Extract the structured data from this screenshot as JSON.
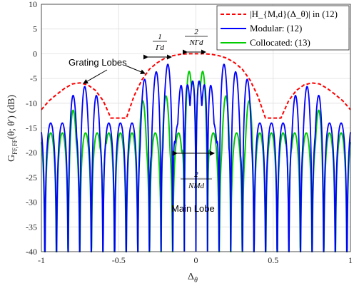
{
  "chart_data": {
    "type": "line",
    "title": "",
    "xlabel": "Δ",
    "xlabel_sub": "θ",
    "ylabel": "G",
    "ylabel_sub": "FF,FF",
    "ylabel_arg": "(θ; θ′) (dB)",
    "xlim": [
      -1,
      1
    ],
    "ylim": [
      -40,
      10
    ],
    "xticks": [
      -1,
      -0.5,
      0,
      0.5,
      1
    ],
    "xtick_labels": [
      "-1",
      "-0.5",
      "0",
      "0.5",
      "1"
    ],
    "yticks": [
      10,
      5,
      0,
      -5,
      -10,
      -15,
      -20,
      -25,
      -30,
      -35,
      -40
    ],
    "ytick_labels": [
      "10",
      "5",
      "0",
      "-5",
      "-10",
      "-15",
      "-20",
      "-25",
      "-30",
      "-35",
      "-40"
    ],
    "grid": true,
    "legend_position": "top-right",
    "legend": [
      "|H_{M,d}(Δ_θ)| in (12)",
      "Modular: (12)",
      "Collocated: (13)"
    ],
    "series": [
      {
        "name": "|H_{M,d}(Δ_θ)| in (12)",
        "color": "#ff0000",
        "style": "dashed",
        "x": [
          -1,
          -0.95,
          -0.9,
          -0.85,
          -0.8,
          -0.75,
          -0.7,
          -0.65,
          -0.6,
          -0.55,
          -0.45,
          -0.4,
          -0.35,
          -0.3,
          -0.25,
          -0.2,
          -0.15,
          -0.1,
          -0.05,
          0,
          0.05,
          0.1,
          0.15,
          0.2,
          0.25,
          0.3,
          0.35,
          0.4,
          0.45,
          0.55,
          0.6,
          0.65,
          0.7,
          0.75,
          0.8,
          0.85,
          0.9,
          0.95,
          1
        ],
        "y": [
          -11.3,
          -9.5,
          -8.2,
          -7,
          -6.1,
          -5.9,
          -6.3,
          -7.4,
          -9.5,
          -13,
          -13,
          -8.5,
          -5.3,
          -3.1,
          -1.8,
          -0.9,
          -0.4,
          -0.1,
          0,
          0,
          0,
          -0.1,
          -0.4,
          -0.9,
          -1.8,
          -3.1,
          -5.3,
          -8.5,
          -13,
          -13,
          -9.5,
          -7.4,
          -6.3,
          -5.9,
          -6.1,
          -7,
          -8.2,
          -9.5,
          -11.3
        ]
      },
      {
        "name": "Modular: (12)",
        "color": "#0000ff",
        "style": "solid",
        "peaks": [
          {
            "x": -0.8,
            "y": -8.0
          },
          {
            "x": -0.725,
            "y": -6.2
          },
          {
            "x": -0.65,
            "y": -8.0
          },
          {
            "x": -0.325,
            "y": -4.5
          },
          {
            "x": -0.25,
            "y": -3.0
          },
          {
            "x": -0.175,
            "y": -1.5
          },
          {
            "x": -0.075,
            "y": -0.8
          },
          {
            "x": 0,
            "y": 0
          },
          {
            "x": 0.075,
            "y": -0.8
          },
          {
            "x": 0.175,
            "y": -1.5
          },
          {
            "x": 0.25,
            "y": -3.0
          },
          {
            "x": 0.325,
            "y": -4.5
          },
          {
            "x": 0.65,
            "y": -8.0
          },
          {
            "x": 0.725,
            "y": -6.2
          },
          {
            "x": 0.8,
            "y": -8.0
          }
        ],
        "floor_dB": -14
      },
      {
        "name": "Collocated: (13)",
        "color": "#00cc00",
        "style": "solid",
        "peaks": [
          {
            "x": -0.8,
            "y": -11
          },
          {
            "x": -0.6,
            "y": -13
          },
          {
            "x": -0.35,
            "y": -9
          },
          {
            "x": -0.2,
            "y": -8
          },
          {
            "x": -0.05,
            "y": -3
          },
          {
            "x": 0,
            "y": 0
          },
          {
            "x": 0.05,
            "y": -3
          },
          {
            "x": 0.2,
            "y": -8
          },
          {
            "x": 0.35,
            "y": -9
          },
          {
            "x": 0.6,
            "y": -13
          },
          {
            "x": 0.8,
            "y": -11
          }
        ],
        "floor_dB": -16
      }
    ],
    "annotations": {
      "grating_lobes": "Grating Lobes",
      "main_lobe": "Main Lobe",
      "frac1_num": "1",
      "frac1_den": "Γd",
      "frac2_num": "2",
      "frac2_den": "NΓd",
      "frac3_num": "2",
      "frac3_den": "NMd"
    }
  },
  "colors": {
    "axis": "#262626",
    "grid": "#dfdfdf"
  }
}
